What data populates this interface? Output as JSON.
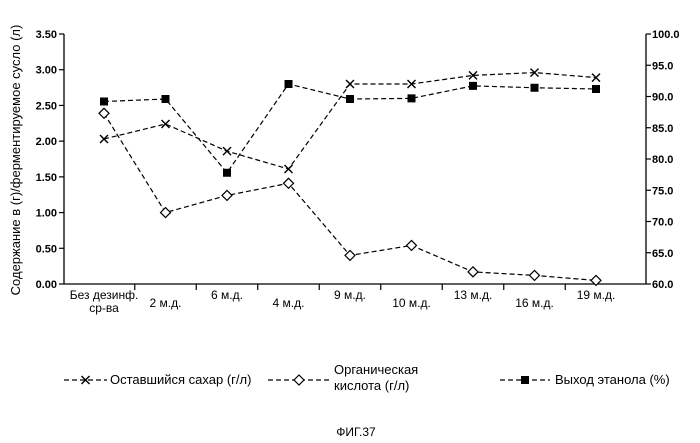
{
  "chart_data": {
    "type": "line",
    "categories": [
      "Без дезинф. ср-ва",
      "2 м.д.",
      "6 м.д.",
      "4 м.д.",
      "9 м.д.",
      "10 м.д.",
      "13 м.д.",
      "16 м.д.",
      "19 м.д."
    ],
    "category_lines": [
      [
        "Без дезинф.",
        "ср-ва"
      ],
      [
        "2 м.д."
      ],
      [
        "6 м.д."
      ],
      [
        "4 м.д."
      ],
      [
        "9 м.д."
      ],
      [
        "10 м.д."
      ],
      [
        "13 м.д."
      ],
      [
        "16 м.д."
      ],
      [
        "19 м.д."
      ]
    ],
    "ylabel": "Содержание в (г)/ферментируемое сусло (л)",
    "ylim": [
      0,
      3.5
    ],
    "y_ticks": [
      "0.00",
      "0.50",
      "1.00",
      "1.50",
      "2.00",
      "2.50",
      "3.00",
      "3.50"
    ],
    "y2lim": [
      60,
      100
    ],
    "y2_ticks": [
      "60.0",
      "65.0",
      "70.0",
      "75.0",
      "80.0",
      "85.0",
      "90.0",
      "95.0",
      "100.0"
    ],
    "grid": false,
    "legend_position": "bottom",
    "series": [
      {
        "name": "Оставшийся сахар (г/л)",
        "legend_lines": [
          "Оставшийся сахар (г/л)"
        ],
        "marker": "x",
        "axis": "left",
        "values": [
          2.03,
          2.24,
          1.86,
          1.61,
          2.8,
          2.8,
          2.92,
          2.96,
          2.89
        ]
      },
      {
        "name": "Органическая кислота (г/л)",
        "legend_lines": [
          "Органическая",
          "кислота (г/л)"
        ],
        "marker": "diamond",
        "axis": "left",
        "values": [
          2.39,
          1.0,
          1.24,
          1.41,
          0.4,
          0.54,
          0.17,
          0.12,
          0.05
        ]
      },
      {
        "name": "Выход этанола (%)",
        "legend_lines": [
          "Выход этанола (%)"
        ],
        "marker": "square",
        "axis": "right",
        "values": [
          89.2,
          89.6,
          77.8,
          92.0,
          89.6,
          89.7,
          91.7,
          91.4,
          91.2
        ]
      }
    ]
  },
  "figure_caption": "ФИГ.37"
}
